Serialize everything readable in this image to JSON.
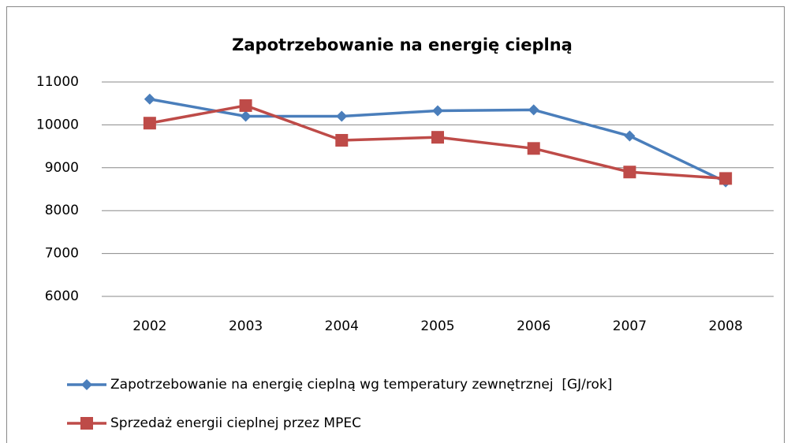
{
  "chart_data": {
    "type": "line",
    "title": "Zapotrzebowanie na energię cieplną",
    "categories": [
      "2002",
      "2003",
      "2004",
      "2005",
      "2006",
      "2007",
      "2008"
    ],
    "series": [
      {
        "name": "Zapotrzebowanie na energię cieplną wg temperatury zewnętrznej  [GJ/rok]",
        "color": "#4a7ebb",
        "marker": "diamond",
        "values": [
          10600,
          10200,
          10200,
          10330,
          10350,
          9740,
          8670
        ]
      },
      {
        "name": "Sprzedaż energii cieplnej przez MPEC",
        "color": "#be4b48",
        "marker": "square",
        "values": [
          10040,
          10450,
          9640,
          9710,
          9450,
          8900,
          8750
        ]
      }
    ],
    "ylim": [
      6000,
      11000
    ],
    "yticks": [
      6000,
      7000,
      8000,
      9000,
      10000,
      11000
    ],
    "grid": true
  }
}
